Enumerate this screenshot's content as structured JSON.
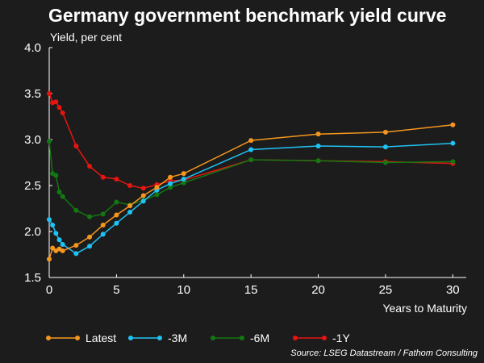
{
  "chart_data": {
    "type": "line",
    "title": "Germany government benchmark yield curve",
    "ylabel": "Yield, per cent",
    "xlabel": "Years to Maturity",
    "source": "Source: LSEG Datastream / Fathom Consulting",
    "xlim": [
      0,
      31
    ],
    "ylim": [
      1.5,
      4.0
    ],
    "xticks": [
      0,
      5,
      10,
      15,
      20,
      25,
      30
    ],
    "yticks": [
      "1.5",
      "2.0",
      "2.5",
      "3.0",
      "3.5",
      "4.0"
    ],
    "grid": false,
    "legend_position": "bottom",
    "series": [
      {
        "name": "Latest",
        "color": "#f5961e",
        "points": [
          [
            0,
            1.7
          ],
          [
            0.25,
            1.82
          ],
          [
            0.5,
            1.79
          ],
          [
            0.75,
            1.81
          ],
          [
            1,
            1.79
          ],
          [
            2,
            1.85
          ],
          [
            3,
            1.94
          ],
          [
            4,
            2.07
          ],
          [
            5,
            2.18
          ],
          [
            6,
            2.28
          ],
          [
            7,
            2.39
          ],
          [
            8,
            2.48
          ],
          [
            9,
            2.59
          ],
          [
            10,
            2.63
          ],
          [
            15,
            2.99
          ],
          [
            20,
            3.06
          ],
          [
            25,
            3.08
          ],
          [
            30,
            3.16
          ]
        ]
      },
      {
        "name": "-3M",
        "color": "#1ec3f5",
        "points": [
          [
            0,
            2.13
          ],
          [
            0.25,
            2.07
          ],
          [
            0.5,
            1.98
          ],
          [
            0.75,
            1.91
          ],
          [
            1,
            1.86
          ],
          [
            2,
            1.76
          ],
          [
            3,
            1.84
          ],
          [
            4,
            1.97
          ],
          [
            5,
            2.09
          ],
          [
            6,
            2.21
          ],
          [
            7,
            2.33
          ],
          [
            8,
            2.45
          ],
          [
            9,
            2.52
          ],
          [
            10,
            2.57
          ],
          [
            15,
            2.89
          ],
          [
            20,
            2.93
          ],
          [
            25,
            2.92
          ],
          [
            30,
            2.96
          ]
        ]
      },
      {
        "name": "-6M",
        "color": "#127812",
        "points": [
          [
            0,
            2.98
          ],
          [
            0.25,
            2.63
          ],
          [
            0.5,
            2.61
          ],
          [
            0.75,
            2.43
          ],
          [
            1,
            2.38
          ],
          [
            2,
            2.23
          ],
          [
            3,
            2.16
          ],
          [
            4,
            2.19
          ],
          [
            5,
            2.32
          ],
          [
            6,
            2.29
          ],
          [
            7,
            2.34
          ],
          [
            8,
            2.4
          ],
          [
            9,
            2.48
          ],
          [
            10,
            2.53
          ],
          [
            15,
            2.78
          ],
          [
            20,
            2.77
          ],
          [
            25,
            2.75
          ],
          [
            30,
            2.76
          ]
        ]
      },
      {
        "name": "-1Y",
        "color": "#e8140f",
        "points": [
          [
            0,
            3.5
          ],
          [
            0.25,
            3.4
          ],
          [
            0.5,
            3.41
          ],
          [
            0.75,
            3.35
          ],
          [
            1,
            3.29
          ],
          [
            2,
            2.93
          ],
          [
            3,
            2.71
          ],
          [
            4,
            2.59
          ],
          [
            5,
            2.57
          ],
          [
            6,
            2.5
          ],
          [
            7,
            2.47
          ],
          [
            8,
            2.51
          ],
          [
            9,
            2.55
          ],
          [
            10,
            2.56
          ],
          [
            15,
            2.78
          ],
          [
            20,
            2.77
          ],
          [
            25,
            2.76
          ],
          [
            30,
            2.74
          ]
        ]
      }
    ]
  }
}
